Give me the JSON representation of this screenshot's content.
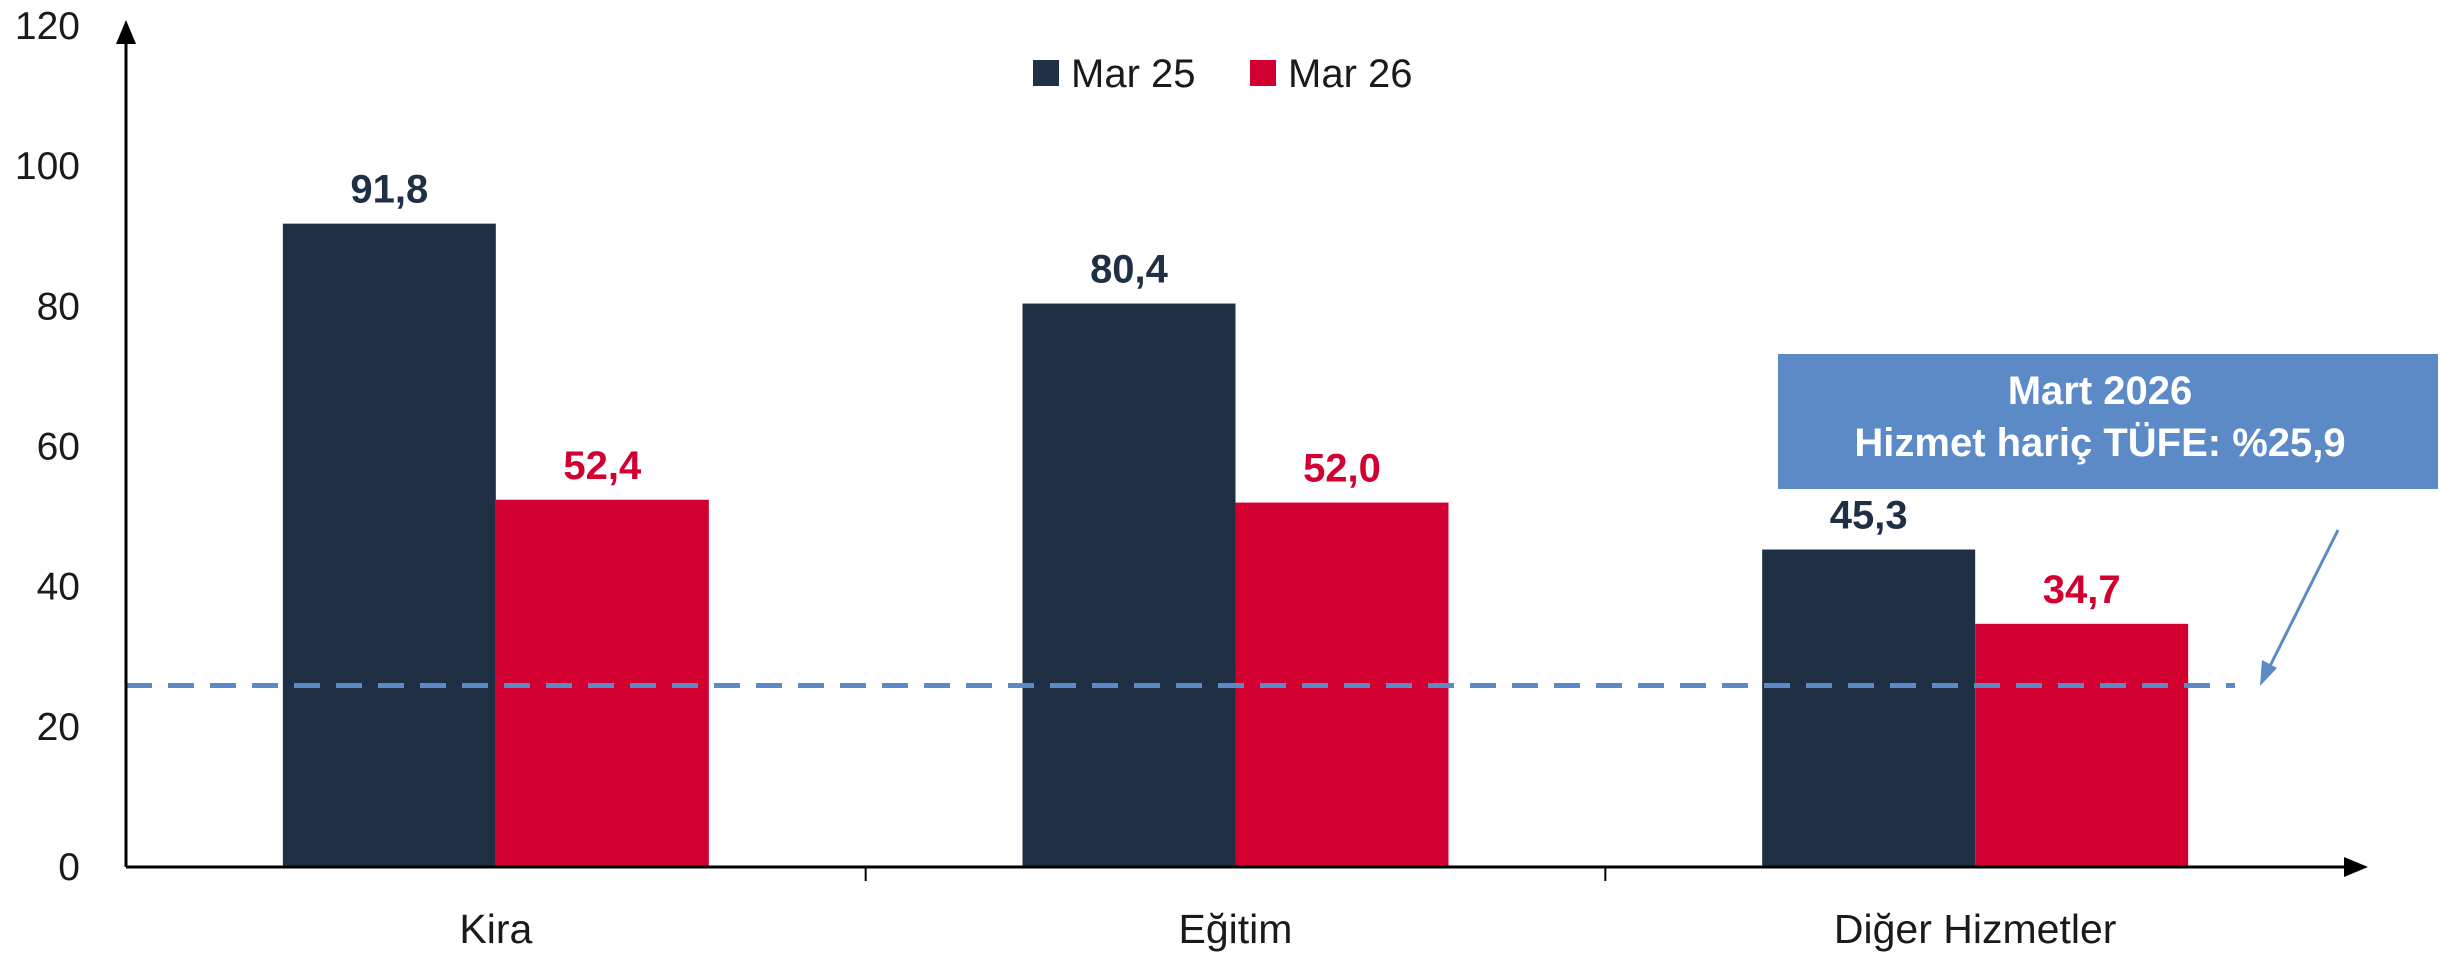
{
  "chart_data": {
    "type": "bar",
    "categories": [
      "Kira",
      "Eğitim",
      "Diğer Hizmetler"
    ],
    "series": [
      {
        "name": "Mar 25",
        "color": "#1f3045",
        "values": [
          91.8,
          80.4,
          45.3
        ],
        "labels": [
          "91,8",
          "80,4",
          "45,3"
        ]
      },
      {
        "name": "Mar 26",
        "color": "#d10031",
        "values": [
          52.4,
          52.0,
          34.7
        ],
        "labels": [
          "52,4",
          "52,0",
          "34,7"
        ]
      }
    ],
    "ylim": [
      0,
      120
    ],
    "yticks": [
      "0",
      "20",
      "40",
      "60",
      "80",
      "100",
      "120"
    ],
    "reference_line": {
      "value": 25.9,
      "color": "#5b8ac6",
      "style": "dashed"
    },
    "annotation": {
      "line1": "Mart 2026",
      "line2": "Hizmet hariç TÜFE:  %25,9",
      "color": "#5b8ac6"
    },
    "legend_position": "top-center",
    "grid": false
  }
}
